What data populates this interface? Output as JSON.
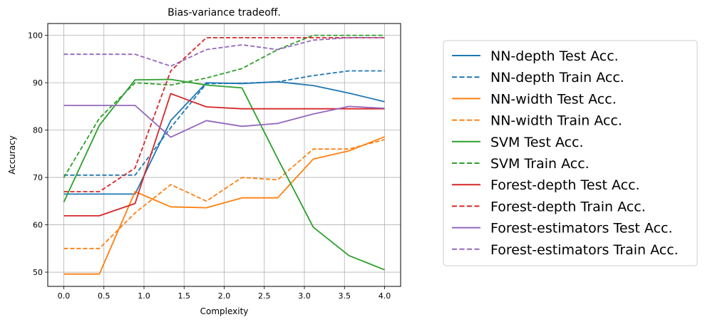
{
  "chart_data": {
    "type": "line",
    "title": "Bias-variance tradeoff.",
    "xlabel": "Complexity",
    "ylabel": "Accuracy",
    "xlim": [
      -0.2,
      4.2
    ],
    "ylim": [
      47,
      102.5
    ],
    "xticks": [
      0.0,
      0.5,
      1.0,
      1.5,
      2.0,
      2.5,
      3.0,
      3.5,
      4.0
    ],
    "xtick_labels": [
      "0.0",
      "0.5",
      "1.0",
      "1.5",
      "2.0",
      "2.5",
      "3.0",
      "3.5",
      "4.0"
    ],
    "yticks": [
      50,
      60,
      70,
      80,
      90,
      100
    ],
    "ytick_labels": [
      "50",
      "60",
      "70",
      "80",
      "90",
      "100"
    ],
    "grid": true,
    "legend_position": "outside-right",
    "x": [
      0.0,
      0.444,
      0.889,
      1.333,
      1.778,
      2.222,
      2.667,
      3.111,
      3.556,
      4.0
    ],
    "series": [
      {
        "name": "NN-depth Test Acc.",
        "color": "#1f77b4",
        "dash": "solid",
        "values": [
          66.5,
          66.5,
          66.5,
          82.0,
          90.0,
          89.8,
          90.2,
          89.4,
          87.8,
          86.0
        ]
      },
      {
        "name": "NN-depth Train Acc.",
        "color": "#1f77b4",
        "dash": "dashed",
        "values": [
          70.5,
          70.5,
          70.5,
          80.5,
          89.8,
          89.9,
          90.2,
          91.5,
          92.5,
          92.5
        ]
      },
      {
        "name": "NN-width Test Acc.",
        "color": "#ff7f0e",
        "dash": "solid",
        "values": [
          49.6,
          49.6,
          67.0,
          63.8,
          63.6,
          65.7,
          65.7,
          73.9,
          75.6,
          78.6
        ]
      },
      {
        "name": "NN-width Train Acc.",
        "color": "#ff7f0e",
        "dash": "dashed",
        "values": [
          55.0,
          55.0,
          62.5,
          68.5,
          65.0,
          70.0,
          69.5,
          76.0,
          76.0,
          78.0
        ]
      },
      {
        "name": "SVM Test Acc.",
        "color": "#2ca02c",
        "dash": "solid",
        "values": [
          64.8,
          81.0,
          90.6,
          90.7,
          89.5,
          88.9,
          74.0,
          59.5,
          53.5,
          50.5
        ]
      },
      {
        "name": "SVM Train Acc.",
        "color": "#2ca02c",
        "dash": "dashed",
        "values": [
          70.0,
          82.5,
          90.0,
          89.5,
          91.0,
          93.0,
          97.0,
          100.0,
          100.0,
          100.0
        ]
      },
      {
        "name": "Forest-depth Test Acc.",
        "color": "#d62728",
        "dash": "solid",
        "values": [
          61.9,
          61.9,
          64.5,
          87.7,
          84.9,
          84.5,
          84.5,
          84.5,
          84.5,
          84.5
        ]
      },
      {
        "name": "Forest-depth Train Acc.",
        "color": "#d62728",
        "dash": "dashed",
        "values": [
          67.0,
          67.0,
          72.0,
          92.5,
          99.5,
          99.5,
          99.5,
          99.5,
          99.5,
          99.5
        ]
      },
      {
        "name": "Forest-estimators Test Acc.",
        "color": "#9467bd",
        "dash": "solid",
        "values": [
          85.2,
          85.2,
          85.2,
          78.5,
          82.0,
          80.8,
          81.4,
          83.4,
          85.0,
          84.6
        ]
      },
      {
        "name": "Forest-estimators Train Acc.",
        "color": "#9467bd",
        "dash": "dashed",
        "values": [
          96.0,
          96.0,
          96.0,
          93.5,
          97.0,
          98.0,
          97.0,
          99.0,
          99.5,
          99.5
        ]
      }
    ]
  }
}
